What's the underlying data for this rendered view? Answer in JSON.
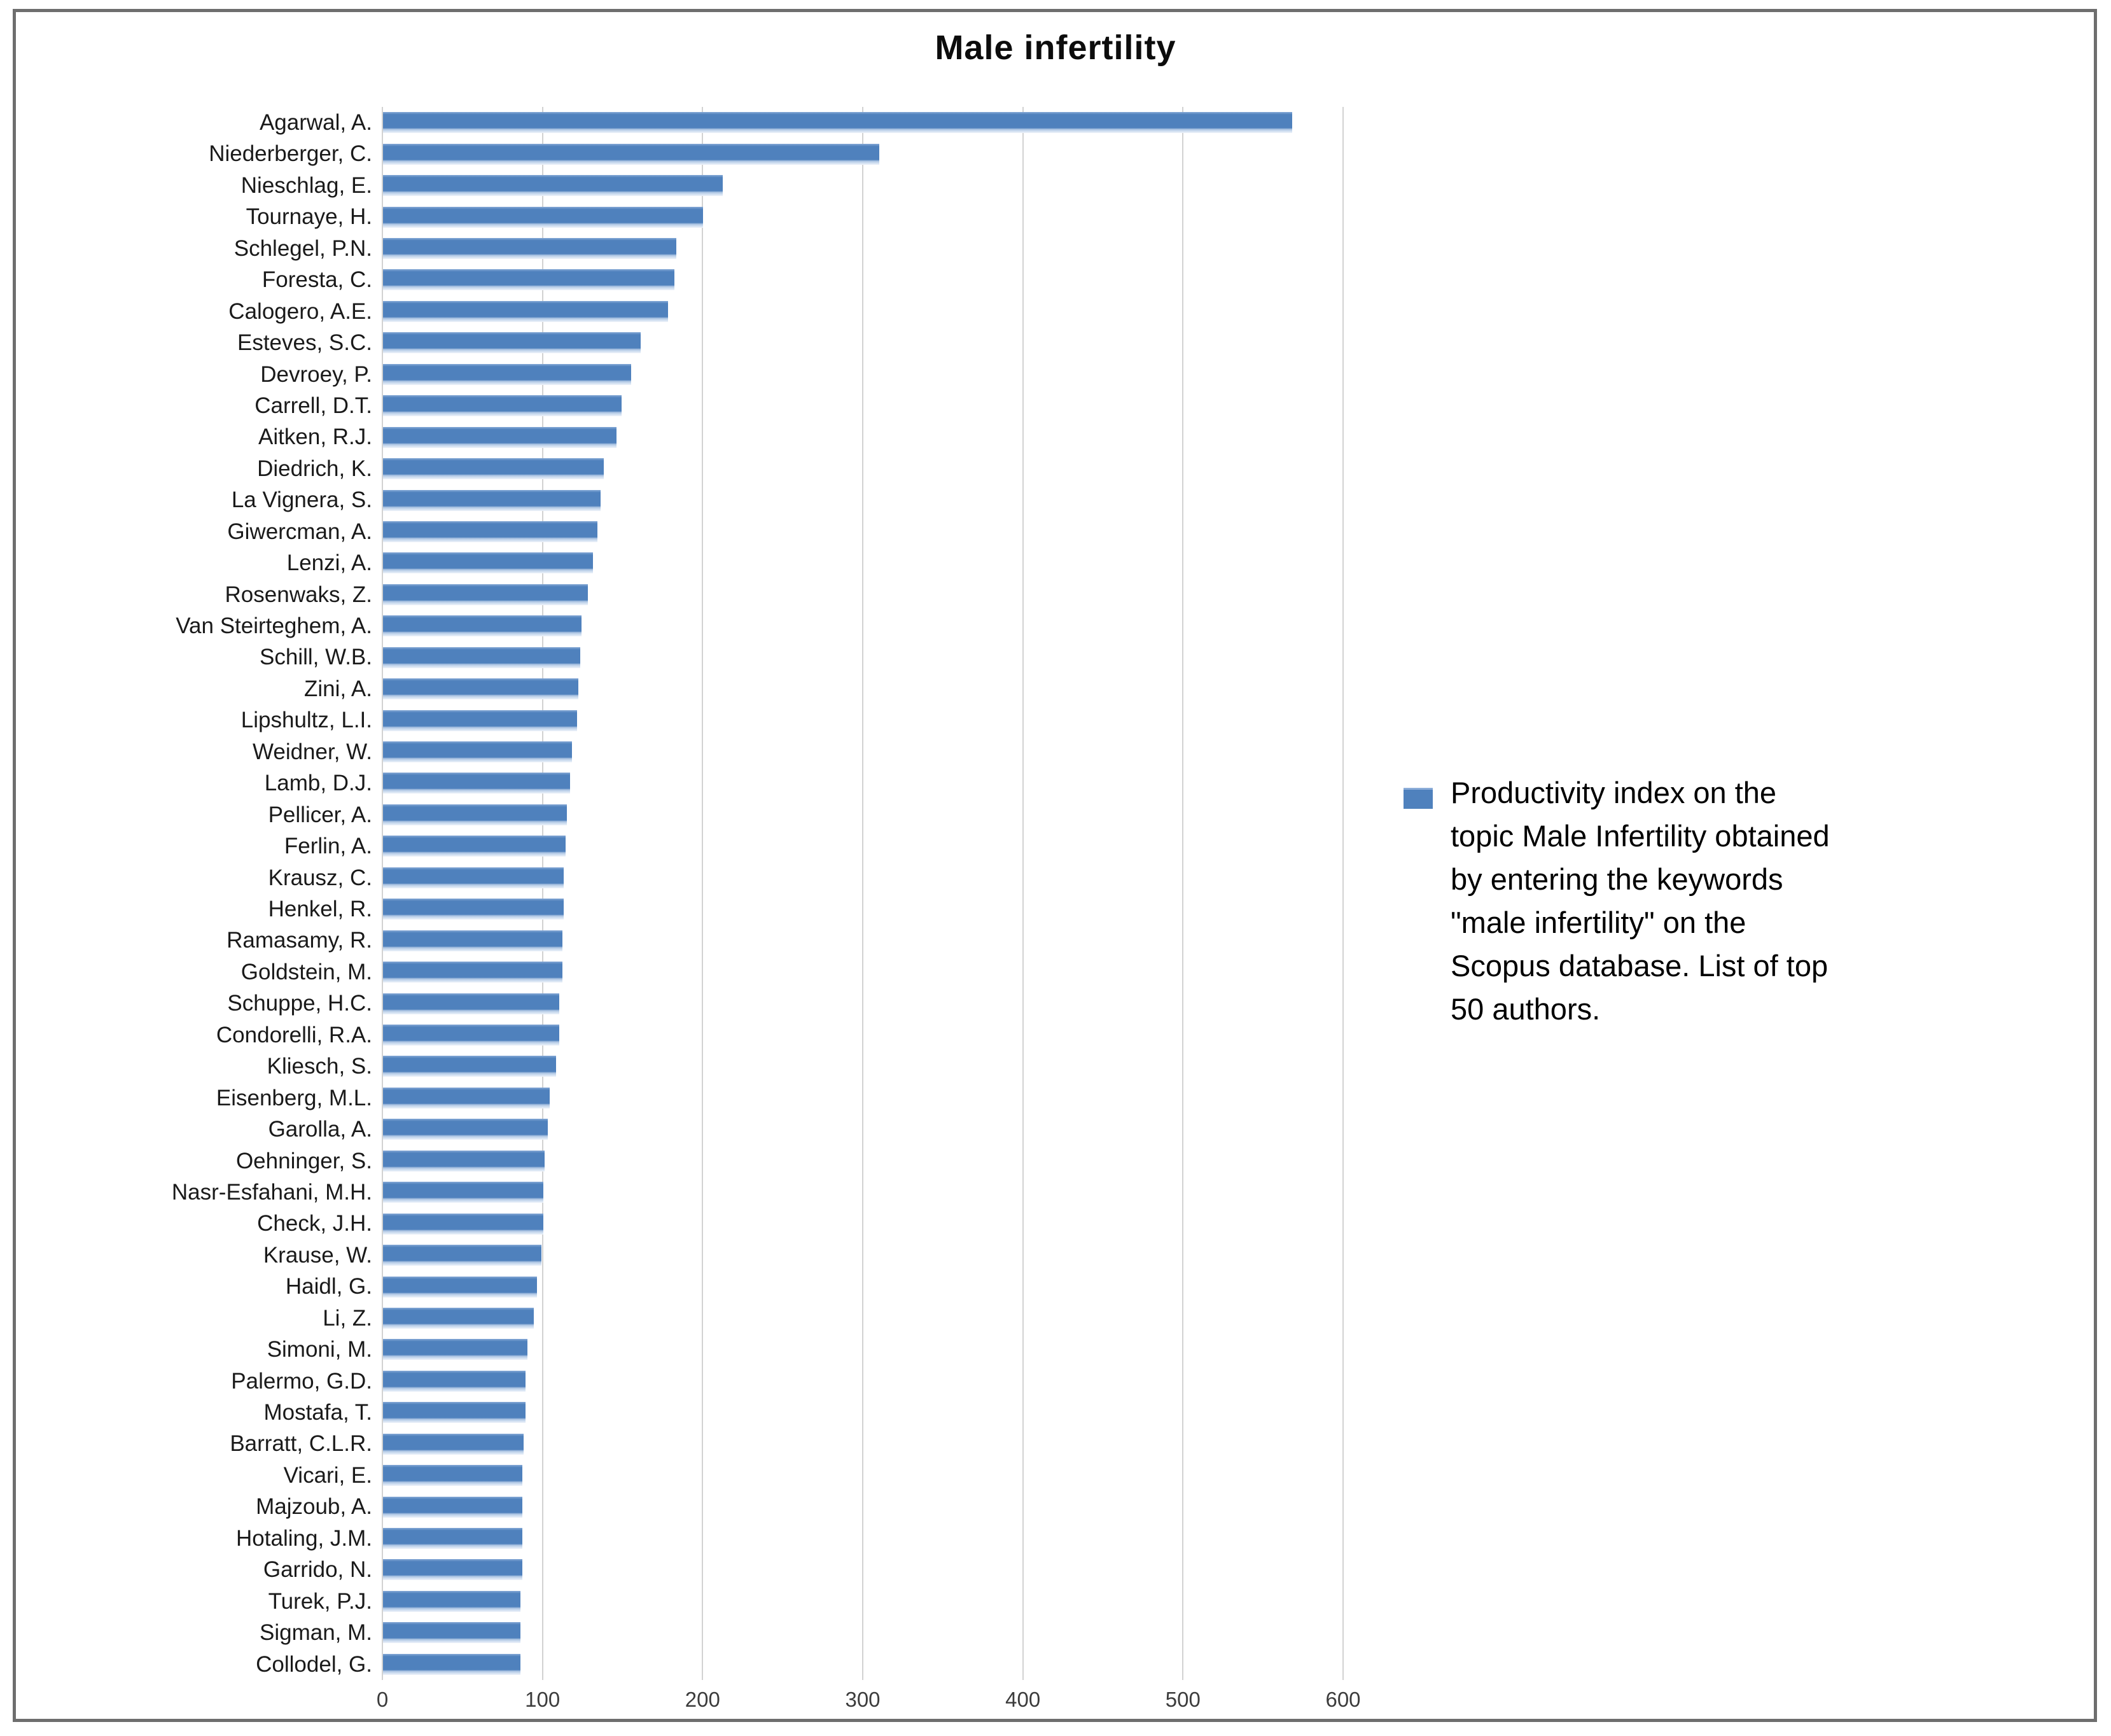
{
  "chart_data": {
    "type": "bar",
    "orientation": "horizontal",
    "title": "Male infertility",
    "categories": [
      "Agarwal, A.",
      "Niederberger, C.",
      "Nieschlag, E.",
      "Tournaye, H.",
      "Schlegel, P.N.",
      "Foresta, C.",
      "Calogero, A.E.",
      "Esteves, S.C.",
      "Devroey, P.",
      "Carrell, D.T.",
      "Aitken, R.J.",
      "Diedrich, K.",
      "La Vignera, S.",
      "Giwercman, A.",
      "Lenzi, A.",
      "Rosenwaks, Z.",
      "Van Steirteghem, A.",
      "Schill, W.B.",
      "Zini, A.",
      "Lipshultz, L.I.",
      "Weidner, W.",
      "Lamb, D.J.",
      "Pellicer, A.",
      "Ferlin, A.",
      "Krausz, C.",
      "Henkel, R.",
      "Ramasamy, R.",
      "Goldstein, M.",
      "Schuppe, H.C.",
      "Condorelli, R.A.",
      "Kliesch, S.",
      "Eisenberg, M.L.",
      "Garolla, A.",
      "Oehninger, S.",
      "Nasr-Esfahani, M.H.",
      "Check, J.H.",
      "Krause, W.",
      "Haidl, G.",
      "Li, Z.",
      "Simoni, M.",
      "Palermo, G.D.",
      "Mostafa, T.",
      "Barratt, C.L.R.",
      "Vicari, E.",
      "Majzoub, A.",
      "Hotaling, J.M.",
      "Garrido, N.",
      "Turek, P.J.",
      "Sigman, M.",
      "Collodel, G."
    ],
    "values": [
      568,
      310,
      212,
      200,
      183,
      182,
      178,
      161,
      155,
      149,
      146,
      138,
      136,
      134,
      131,
      128,
      124,
      123,
      122,
      121,
      118,
      117,
      115,
      114,
      113,
      113,
      112,
      112,
      110,
      110,
      108,
      104,
      103,
      101,
      100,
      100,
      99,
      96,
      94,
      90,
      89,
      89,
      88,
      87,
      87,
      87,
      87,
      86,
      86,
      86
    ],
    "xlabel": "",
    "ylabel": "",
    "xlim": [
      0,
      600
    ],
    "x_ticks": [
      0,
      100,
      200,
      300,
      400,
      500,
      600
    ],
    "grid": "vertical-gridlines",
    "legend_position": "right",
    "bar_color": "#4F81BD",
    "gridline_color": "#D2D2D2",
    "frame_color": "#6E6E6E",
    "legend": {
      "marker_color": "#4F81BD",
      "text": "Productivity index on the topic Male Infertility obtained by entering the keywords \"male infertility\" on the Scopus database. List of top 50 authors.",
      "lines": [
        "Productivity index on the",
        "topic Male Infertility obtained",
        "by entering the keywords",
        "\"male infertility\" on the",
        "Scopus database. List of top",
        "50 authors."
      ]
    }
  }
}
